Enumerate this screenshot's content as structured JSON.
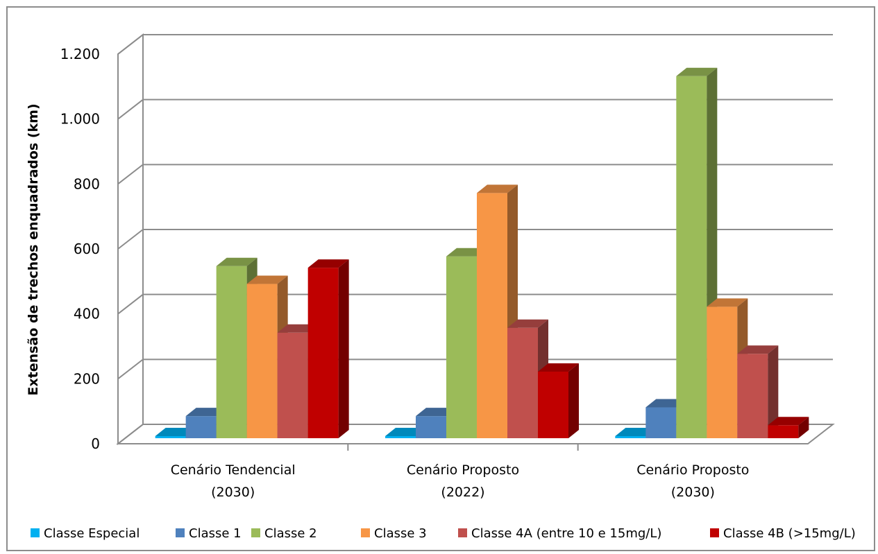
{
  "chart_data": {
    "type": "bar",
    "categories": [
      [
        "Cenário Tendencial",
        "(2030)"
      ],
      [
        "Cenário Proposto",
        "(2022)"
      ],
      [
        "Cenário Proposto",
        "(2030)"
      ]
    ],
    "series": [
      {
        "name": "Classe Especial",
        "values": [
          2,
          2,
          2
        ],
        "color": "#00b0f0"
      },
      {
        "name": "Classe 1",
        "values": [
          68,
          68,
          95
        ],
        "color": "#4f81bd"
      },
      {
        "name": "Classe 2",
        "values": [
          530,
          560,
          1115
        ],
        "color": "#9bbb59"
      },
      {
        "name": "Classe 3",
        "values": [
          475,
          755,
          405
        ],
        "color": "#f79646"
      },
      {
        "name": "Classe 4A (entre 10 e 15mg/L)",
        "values": [
          325,
          340,
          260
        ],
        "color": "#c0504d"
      },
      {
        "name": "Classe 4B (>15mg/L)",
        "values": [
          525,
          205,
          40
        ],
        "color": "#c00000"
      }
    ],
    "ylabel": "Extensão de trechos enquadrados (km)",
    "ylim": [
      0,
      1200
    ],
    "yticks": [
      0,
      200,
      400,
      600,
      800,
      1000,
      1200
    ],
    "ytick_labels": [
      "0",
      "200",
      "400",
      "600",
      "800",
      "1.000",
      "1.200"
    ],
    "grid": true,
    "legend_position": "bottom",
    "style": "3d-clustered-column"
  }
}
